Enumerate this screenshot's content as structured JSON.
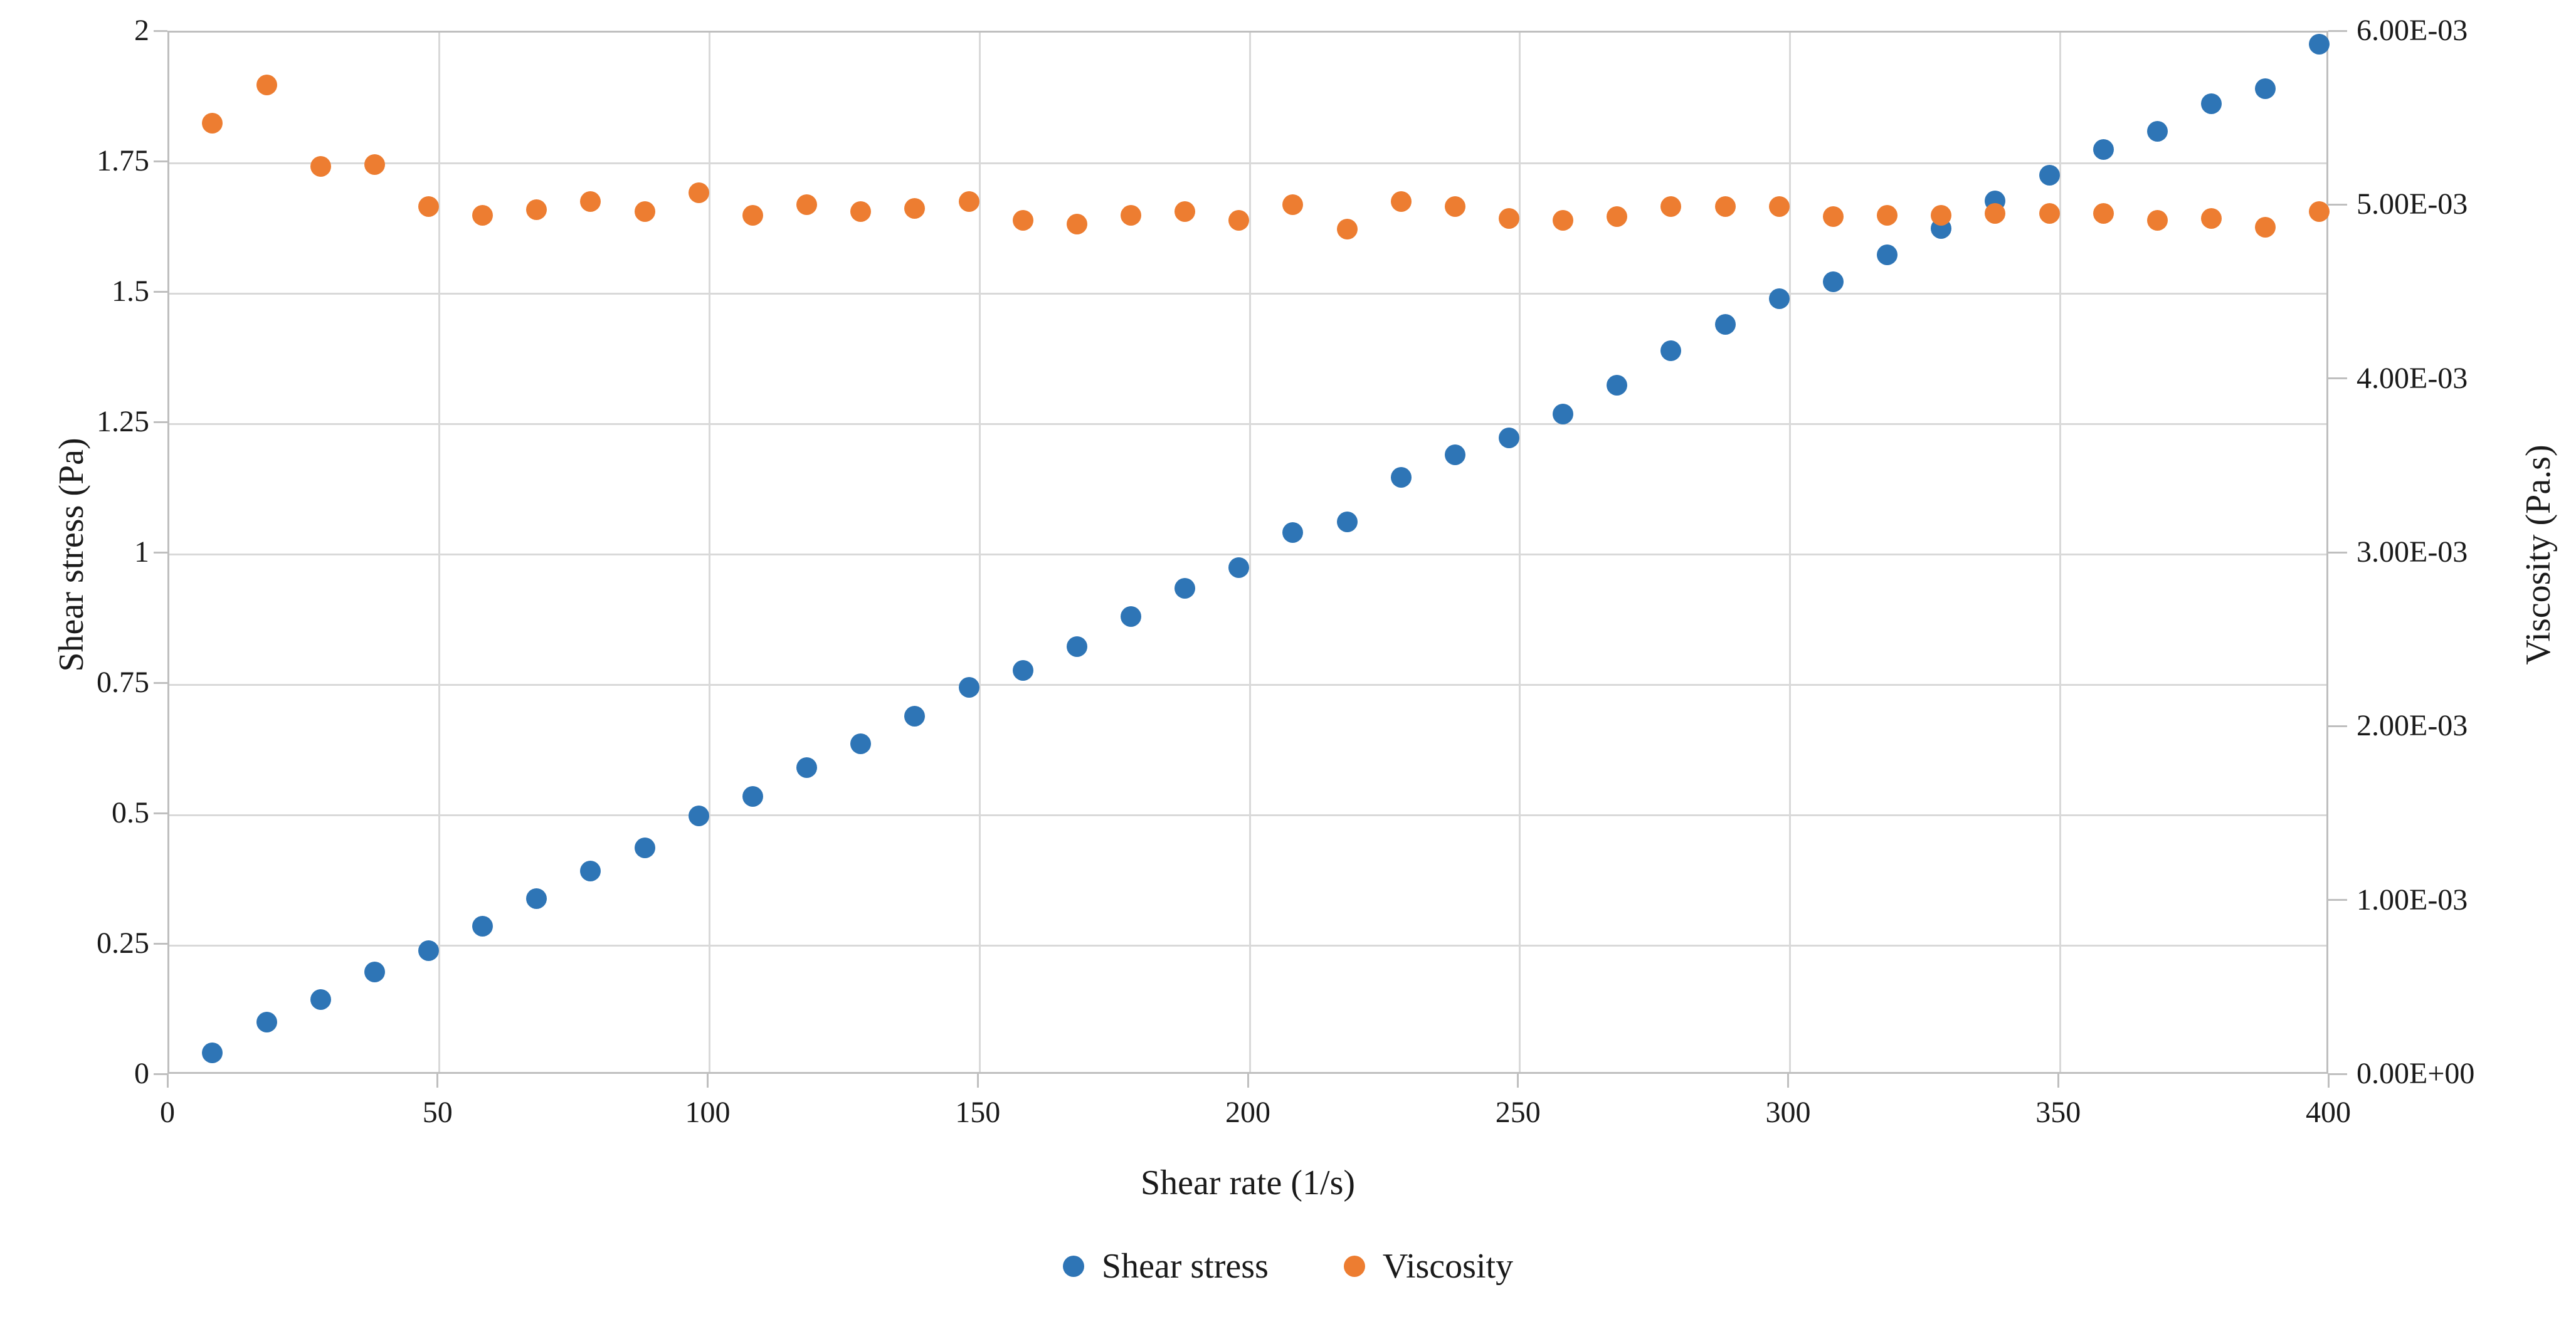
{
  "chart_data": {
    "type": "scatter",
    "title": "",
    "xlabel": "Shear rate (1/s)",
    "ylabel_left": "Shear stress (Pa)",
    "ylabel_right": "Viscosity (Pa.s)",
    "xlim": [
      0,
      400
    ],
    "ylim_left": [
      0,
      2
    ],
    "ylim_right": [
      0,
      0.006
    ],
    "grid": true,
    "legend_position": "bottom",
    "x_ticks": [
      {
        "value": 0,
        "label": "0"
      },
      {
        "value": 50,
        "label": "50"
      },
      {
        "value": 100,
        "label": "100"
      },
      {
        "value": 150,
        "label": "150"
      },
      {
        "value": 200,
        "label": "200"
      },
      {
        "value": 250,
        "label": "250"
      },
      {
        "value": 300,
        "label": "300"
      },
      {
        "value": 350,
        "label": "350"
      },
      {
        "value": 400,
        "label": "400"
      }
    ],
    "y_ticks_left": [
      {
        "value": 0,
        "label": "0"
      },
      {
        "value": 0.25,
        "label": "0.25"
      },
      {
        "value": 0.5,
        "label": "0.5"
      },
      {
        "value": 0.75,
        "label": "0.75"
      },
      {
        "value": 1,
        "label": "1"
      },
      {
        "value": 1.25,
        "label": "1.25"
      },
      {
        "value": 1.5,
        "label": "1.5"
      },
      {
        "value": 1.75,
        "label": "1.75"
      },
      {
        "value": 2,
        "label": "2"
      }
    ],
    "y_ticks_right": [
      {
        "value": 0.0,
        "label": "0.00E+00"
      },
      {
        "value": 0.001,
        "label": "1.00E-03"
      },
      {
        "value": 0.002,
        "label": "2.00E-03"
      },
      {
        "value": 0.003,
        "label": "3.00E-03"
      },
      {
        "value": 0.004,
        "label": "4.00E-03"
      },
      {
        "value": 0.005,
        "label": "5.00E-03"
      },
      {
        "value": 0.006,
        "label": "6.00E-03"
      }
    ],
    "x": [
      8,
      18,
      28,
      38,
      48,
      58,
      68,
      78,
      88,
      98,
      108,
      118,
      128,
      138,
      148,
      158,
      168,
      178,
      188,
      198,
      208,
      218,
      228,
      238,
      248,
      258,
      268,
      278,
      288,
      298,
      308,
      318,
      328,
      338,
      348,
      358,
      368,
      378,
      388,
      398
    ],
    "series": [
      {
        "name": "Shear stress",
        "axis": "left",
        "color": "#2E75B6",
        "marker": "circle",
        "values": [
          0.044,
          0.103,
          0.146,
          0.199,
          0.24,
          0.287,
          0.339,
          0.392,
          0.437,
          0.498,
          0.535,
          0.591,
          0.636,
          0.689,
          0.744,
          0.777,
          0.823,
          0.881,
          0.934,
          0.974,
          1.042,
          1.062,
          1.147,
          1.19,
          1.223,
          1.269,
          1.324,
          1.39,
          1.44,
          1.49,
          1.522,
          1.574,
          1.624,
          1.677,
          1.726,
          1.776,
          1.811,
          1.864,
          1.893,
          1.978
        ]
      },
      {
        "name": "Viscosity",
        "axis": "right",
        "color": "#ED7D31",
        "marker": "circle",
        "values": [
          0.00548,
          0.0057,
          0.00523,
          0.00524,
          0.005,
          0.00495,
          0.00498,
          0.00503,
          0.00497,
          0.00508,
          0.00495,
          0.00501,
          0.00497,
          0.00499,
          0.00503,
          0.00492,
          0.0049,
          0.00495,
          0.00497,
          0.00492,
          0.00501,
          0.00487,
          0.00503,
          0.005,
          0.00493,
          0.00492,
          0.00494,
          0.005,
          0.005,
          0.005,
          0.00494,
          0.00495,
          0.00495,
          0.00496,
          0.00496,
          0.00496,
          0.00492,
          0.00493,
          0.00488,
          0.00497
        ]
      }
    ],
    "colors": {
      "gridline": "#D9D9D9",
      "axis_border": "#BFBFBF",
      "text": "#1A1A1A"
    }
  }
}
